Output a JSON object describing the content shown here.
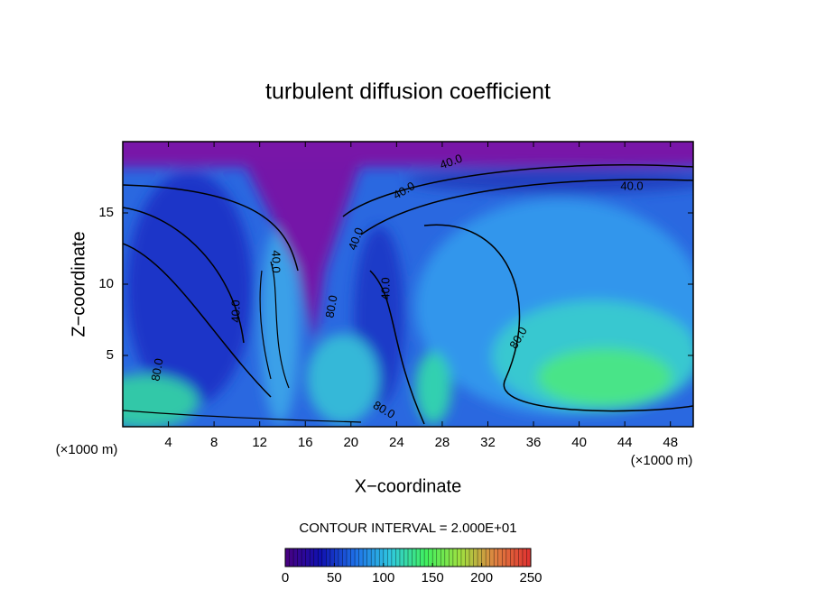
{
  "chart_data": {
    "type": "contour",
    "title": "turbulent diffusion coefficient",
    "xlabel": "X−coordinate",
    "ylabel": "Z−coordinate",
    "xunit": "(×1000 m)",
    "xlim": [
      0,
      50
    ],
    "ylim": [
      0,
      20
    ],
    "xticks": [
      4,
      8,
      12,
      16,
      20,
      24,
      28,
      32,
      36,
      40,
      44,
      48
    ],
    "yticks": [
      5,
      10,
      15
    ],
    "contour_labels": [
      "40.0",
      "40.0",
      "40.0",
      "40.0",
      "40.0",
      "40.0",
      "40.0",
      "80.0",
      "80.0",
      "80.0",
      "80.0"
    ],
    "colorbar": {
      "label": "CONTOUR INTERVAL = 2.000E+01",
      "lim": [
        0,
        250
      ],
      "ticks": [
        0,
        50,
        100,
        150,
        200,
        250
      ],
      "colormap": [
        "#4a0080",
        "#1010b0",
        "#1e70e8",
        "#30c8e0",
        "#40f060",
        "#a0e040",
        "#e08040",
        "#e03030"
      ]
    }
  }
}
